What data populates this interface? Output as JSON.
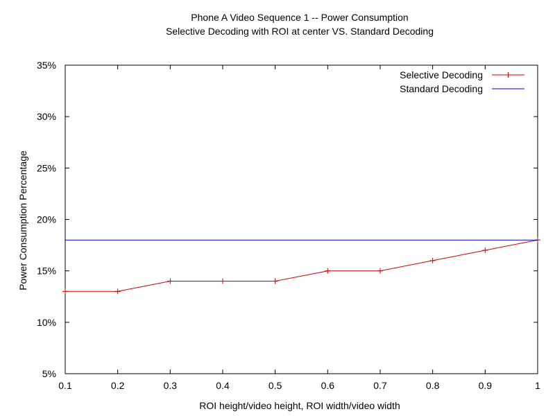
{
  "chart_data": {
    "type": "line",
    "title": "Phone A Video Sequence 1 -- Power Consumption",
    "subtitle": "Selective Decoding with ROI at center VS. Standard Decoding",
    "xlabel": "ROI height/video height, ROI width/video width",
    "ylabel": "Power Consumption Percentage",
    "xlim": [
      0.1,
      1
    ],
    "ylim": [
      5,
      35
    ],
    "x_ticks": [
      0.1,
      0.2,
      0.3,
      0.4,
      0.5,
      0.6,
      0.7,
      0.8,
      0.9,
      1
    ],
    "x_tick_labels": [
      "0.1",
      "0.2",
      "0.3",
      "0.4",
      "0.5",
      "0.6",
      "0.7",
      "0.8",
      "0.9",
      "1"
    ],
    "y_ticks": [
      5,
      10,
      15,
      20,
      25,
      30,
      35
    ],
    "y_tick_labels": [
      "5%",
      "10%",
      "15%",
      "20%",
      "25%",
      "30%",
      "35%"
    ],
    "grid": false,
    "legend_position": "top-right",
    "series": [
      {
        "name": "Selective Decoding",
        "color": "#cc0000",
        "marker": "plus",
        "x": [
          0.1,
          0.2,
          0.3,
          0.4,
          0.5,
          0.6,
          0.7,
          0.8,
          0.9,
          1
        ],
        "y": [
          13,
          13,
          14,
          14,
          14,
          15,
          15,
          16,
          17,
          18
        ]
      },
      {
        "name": "Standard Decoding",
        "color": "#0000cc",
        "marker": "none",
        "x": [
          0.1,
          1
        ],
        "y": [
          18,
          18
        ]
      }
    ]
  }
}
